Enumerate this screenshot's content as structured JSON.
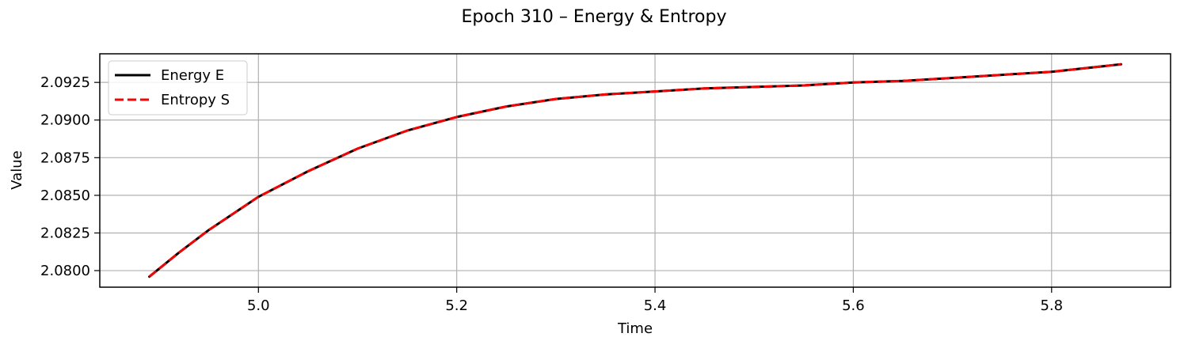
{
  "chart_data": {
    "type": "line",
    "title": "Epoch 310 – Energy & Entropy",
    "xlabel": "Time",
    "ylabel": "Value",
    "xlim": [
      4.84,
      5.92
    ],
    "ylim": [
      2.0789,
      2.0944
    ],
    "xticks": [
      5.0,
      5.2,
      5.4,
      5.6,
      5.8
    ],
    "xtick_labels": [
      "5.0",
      "5.2",
      "5.4",
      "5.6",
      "5.8"
    ],
    "yticks": [
      2.08,
      2.0825,
      2.085,
      2.0875,
      2.09,
      2.0925
    ],
    "ytick_labels": [
      "2.0800",
      "2.0825",
      "2.0850",
      "2.0875",
      "2.0900",
      "2.0925"
    ],
    "grid": true,
    "legend_position": "top-left",
    "x": [
      4.89,
      4.92,
      4.95,
      5.0,
      5.05,
      5.1,
      5.15,
      5.2,
      5.25,
      5.3,
      5.35,
      5.4,
      5.45,
      5.5,
      5.55,
      5.6,
      5.65,
      5.7,
      5.75,
      5.8,
      5.87
    ],
    "series": [
      {
        "name": "Energy E",
        "color": "#000000",
        "style": "solid",
        "values": [
          2.0796,
          2.0812,
          2.0827,
          2.0849,
          2.0866,
          2.0881,
          2.0893,
          2.0902,
          2.0909,
          2.0914,
          2.0917,
          2.0919,
          2.0921,
          2.0922,
          2.0923,
          2.0925,
          2.0926,
          2.0928,
          2.093,
          2.0932,
          2.0937
        ]
      },
      {
        "name": "Entropy S",
        "color": "#ff0000",
        "style": "dashed",
        "values": [
          2.0796,
          2.0812,
          2.0827,
          2.0849,
          2.0866,
          2.0881,
          2.0893,
          2.0902,
          2.0909,
          2.0914,
          2.0917,
          2.0919,
          2.0921,
          2.0922,
          2.0923,
          2.0925,
          2.0926,
          2.0928,
          2.093,
          2.0932,
          2.0937
        ]
      }
    ]
  }
}
